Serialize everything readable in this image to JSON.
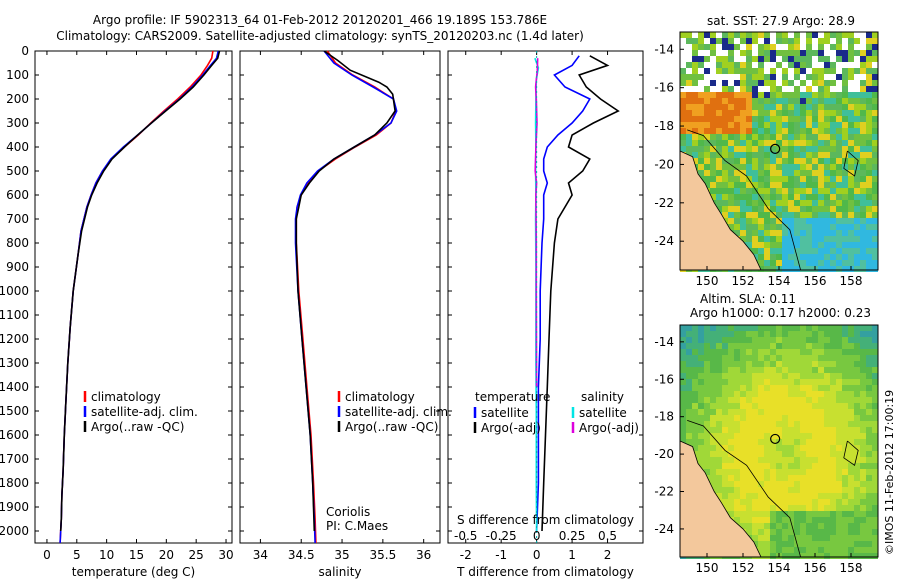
{
  "titles": {
    "line1": "Argo profile: IF 5902313_64 01-Feb-2012 20120201_466 19.189S 153.786E",
    "line2": "Climatology: CARS2009. Satellite-adjusted climatology: synTS_20120203.nc (1.4d later)"
  },
  "footer": "©IMOS 11-Feb-2012 17:00:19",
  "colors": {
    "climatology": "#ff0000",
    "satellite": "#0000ff",
    "argo": "#000000",
    "salinity_satellite": "#00e5e5",
    "salinity_argo": "#dd00dd",
    "land": "#f3c89c"
  },
  "chart_data": [
    {
      "type": "line",
      "xlabel": "temperature (deg C)",
      "ylabel": "",
      "xlim": [
        -2,
        31
      ],
      "ylim": [
        2050,
        0
      ],
      "xticks": [
        "0",
        "5",
        "10",
        "15",
        "20",
        "25",
        "30"
      ],
      "yticks": [
        "0",
        "100",
        "200",
        "300",
        "400",
        "500",
        "600",
        "700",
        "800",
        "900",
        "1000",
        "1100",
        "1200",
        "1300",
        "1400",
        "1500",
        "1600",
        "1700",
        "1800",
        "1900",
        "2000"
      ],
      "legend": [
        "climatology",
        "satellite-adj. clim.",
        "Argo(..raw -QC)"
      ],
      "series": [
        {
          "name": "climatology",
          "color": "#ff0000",
          "x": [
            27.8,
            27.6,
            26.9,
            25.8,
            24.0,
            21.9,
            19.6,
            17.4,
            15.3,
            13.0,
            10.8,
            9.3,
            8.2,
            7.4,
            6.7,
            5.7,
            5.2,
            4.4,
            3.9,
            3.5,
            3.2,
            2.9,
            2.7,
            2.5,
            2.4,
            2.3,
            2.2
          ],
          "y": [
            0,
            30,
            60,
            100,
            150,
            200,
            250,
            300,
            350,
            400,
            450,
            500,
            550,
            600,
            650,
            750,
            850,
            1000,
            1150,
            1300,
            1450,
            1600,
            1750,
            1850,
            1950,
            2000,
            2050
          ]
        },
        {
          "name": "satellite-adj. clim.",
          "color": "#0000ff",
          "x": [
            28.7,
            28.4,
            27.4,
            26.1,
            24.3,
            22.2,
            19.8,
            17.5,
            15.2,
            12.8,
            10.7,
            9.3,
            8.2,
            7.4,
            6.7,
            5.7,
            5.2,
            4.4,
            3.9,
            3.5,
            3.2,
            2.9,
            2.7,
            2.5,
            2.4,
            2.3,
            2.2
          ],
          "y": [
            0,
            30,
            60,
            100,
            150,
            200,
            250,
            300,
            350,
            400,
            450,
            500,
            550,
            600,
            650,
            750,
            850,
            1000,
            1150,
            1300,
            1450,
            1600,
            1750,
            1850,
            1950,
            2000,
            2050
          ]
        },
        {
          "name": "Argo(..raw -QC)",
          "color": "#000000",
          "x": [
            28.9,
            28.6,
            27.6,
            26.3,
            24.5,
            22.3,
            19.9,
            17.5,
            15.2,
            13.0,
            10.9,
            9.5,
            8.4,
            7.5,
            6.8,
            5.8,
            5.2,
            4.4,
            3.9,
            3.5,
            3.2,
            2.9,
            2.7,
            2.5,
            2.4,
            2.3
          ],
          "y": [
            0,
            30,
            60,
            100,
            150,
            200,
            250,
            300,
            350,
            400,
            450,
            500,
            550,
            600,
            650,
            750,
            850,
            1000,
            1150,
            1300,
            1450,
            1600,
            1750,
            1850,
            1950,
            2000
          ]
        }
      ]
    },
    {
      "type": "line",
      "xlabel": "salinity",
      "xlim": [
        33.75,
        36.2
      ],
      "ylim": [
        2050,
        0
      ],
      "xticks": [
        "34",
        "34.5",
        "35",
        "35.5",
        "36"
      ],
      "legend": [
        "climatology",
        "satellite-adj. clim.",
        "Argo(..raw -QC)"
      ],
      "annotations": [
        "Coriolis",
        "PI: C.Maes"
      ],
      "series": [
        {
          "name": "climatology",
          "color": "#ff0000",
          "x": [
            34.82,
            34.92,
            35.13,
            35.4,
            35.63,
            35.66,
            35.6,
            35.42,
            35.16,
            34.92,
            34.71,
            34.58,
            34.5,
            34.45,
            34.44,
            34.44,
            34.47,
            34.52,
            34.57,
            34.62,
            34.65,
            34.67,
            34.68
          ],
          "y": [
            0,
            50,
            100,
            150,
            200,
            250,
            300,
            350,
            400,
            450,
            500,
            550,
            600,
            650,
            700,
            800,
            1000,
            1200,
            1400,
            1600,
            1800,
            1950,
            2050
          ]
        },
        {
          "name": "satellite-adj. clim.",
          "color": "#0000ff",
          "x": [
            34.78,
            34.9,
            35.12,
            35.38,
            35.63,
            35.67,
            35.6,
            35.4,
            35.15,
            34.9,
            34.7,
            34.57,
            34.49,
            34.45,
            34.43,
            34.43,
            34.46,
            34.51,
            34.56,
            34.61,
            34.64,
            34.66,
            34.67
          ],
          "y": [
            0,
            50,
            100,
            150,
            200,
            250,
            300,
            350,
            400,
            450,
            500,
            550,
            600,
            650,
            700,
            800,
            1000,
            1200,
            1400,
            1600,
            1800,
            1950,
            2050
          ]
        },
        {
          "name": "Argo(..raw -QC)",
          "color": "#000000",
          "x": [
            34.78,
            34.95,
            35.1,
            35.45,
            35.55,
            35.62,
            35.65,
            35.55,
            35.4,
            35.15,
            34.9,
            34.72,
            34.6,
            34.5,
            34.47,
            34.44,
            34.44,
            34.46,
            34.51,
            34.56,
            34.61,
            34.64,
            34.66
          ],
          "y": [
            0,
            40,
            80,
            130,
            150,
            180,
            250,
            300,
            350,
            400,
            450,
            500,
            550,
            600,
            650,
            700,
            800,
            1000,
            1200,
            1400,
            1600,
            1800,
            2000
          ]
        }
      ]
    },
    {
      "type": "line",
      "xlabel": "T difference from climatology",
      "xlabel_top": "S difference from climatology",
      "xlim": [
        -2.5,
        3.0
      ],
      "ylim": [
        2050,
        0
      ],
      "xticks": [
        "-2",
        "-1",
        "0",
        "1",
        "2"
      ],
      "xticks_top": [
        "-0.5",
        "-0.25",
        "0",
        "0.25",
        "0.5"
      ],
      "legend_headers": [
        "temperature",
        "salinity"
      ],
      "legend": [
        "satellite",
        "Argo(-adj)",
        "satellite",
        "Argo(-adj)"
      ],
      "series": [
        {
          "name": "temperature satellite",
          "color": "#0000ff",
          "x": [
            1.2,
            1.0,
            0.5,
            0.8,
            1.5,
            1.3,
            1.0,
            0.6,
            0.3,
            0.2,
            0.2,
            0.3,
            0.2,
            0.2,
            0.15,
            0.1,
            0.1,
            0.05,
            0.05,
            0.05,
            0.0
          ],
          "y": [
            20,
            60,
            100,
            150,
            200,
            250,
            300,
            350,
            400,
            450,
            500,
            550,
            600,
            700,
            800,
            1000,
            1200,
            1400,
            1600,
            1800,
            2000
          ]
        },
        {
          "name": "temperature Argo(-adj)",
          "color": "#000000",
          "x": [
            1.5,
            2.0,
            1.2,
            1.4,
            1.8,
            2.3,
            1.6,
            1.0,
            0.9,
            1.5,
            1.3,
            0.9,
            1.0,
            0.6,
            0.5,
            0.4,
            0.35,
            0.3,
            0.25,
            0.2,
            0.15
          ],
          "y": [
            20,
            60,
            100,
            150,
            200,
            250,
            300,
            350,
            400,
            450,
            500,
            550,
            600,
            700,
            800,
            1000,
            1200,
            1400,
            1600,
            1800,
            2000
          ]
        },
        {
          "name": "salinity satellite",
          "color": "#00e5e5",
          "x": [
            -0.05,
            0.05,
            -0.01,
            -0.02,
            -0.03,
            -0.02,
            -0.03,
            -0.02,
            -0.03,
            -0.02,
            -0.02,
            -0.02,
            -0.01,
            -0.01,
            0.0
          ],
          "y": [
            30,
            70,
            120,
            200,
            300,
            400,
            500,
            600,
            700,
            900,
            1100,
            1300,
            1500,
            1800,
            2000
          ]
        },
        {
          "name": "salinity Argo(-adj)",
          "color": "#dd00dd",
          "x": [
            0.03,
            0.02,
            -0.03,
            -0.01,
            0.01,
            -0.02,
            -0.04,
            0.0,
            -0.02,
            -0.01,
            -0.01,
            0.0
          ],
          "y": [
            30,
            80,
            150,
            200,
            300,
            400,
            500,
            550,
            600,
            800,
            1000,
            1400
          ]
        }
      ]
    },
    {
      "type": "heatmap",
      "title": "sat. SST: 27.9 Argo: 28.9",
      "xlim": [
        148.5,
        159.5
      ],
      "ylim": [
        -25.5,
        -13.1
      ],
      "xticks": [
        "150",
        "152",
        "154",
        "156",
        "158"
      ],
      "yticks": [
        "-14",
        "-16",
        "-18",
        "-20",
        "-22",
        "-24"
      ]
    },
    {
      "type": "heatmap",
      "title": "Altim. SLA: 0.11",
      "subtitle": "Argo h1000: 0.17 h2000: 0.23",
      "xlim": [
        148.5,
        159.5
      ],
      "ylim": [
        -25.5,
        -13.1
      ],
      "xticks": [
        "150",
        "152",
        "154",
        "156",
        "158"
      ],
      "yticks": [
        "-14",
        "-16",
        "-18",
        "-20",
        "-22",
        "-24"
      ]
    }
  ]
}
